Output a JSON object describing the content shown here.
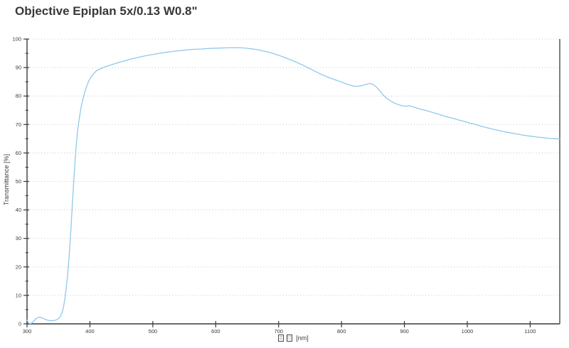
{
  "title": "Objective Epiplan 5x/0.13 W0.8\"",
  "chart_data": {
    "type": "line",
    "title": "Objective Epiplan 5x/0.13 W0.8\"",
    "ylabel": "Transmittance [%]",
    "xlabel_prefix_glyphs": "□□",
    "xlabel_unit": "[nm]",
    "xlim": [
      300,
      1147
    ],
    "ylim": [
      0,
      100
    ],
    "x_ticks": [
      300,
      400,
      500,
      600,
      700,
      800,
      900,
      1000,
      1100
    ],
    "y_ticks": [
      0,
      10,
      20,
      30,
      40,
      50,
      60,
      70,
      80,
      90,
      100
    ],
    "y_minor_step": 5,
    "grid": "horizontal-dotted",
    "legend": "none",
    "colors": {
      "line": "#8FC9EA",
      "axis": "#383838",
      "grid": "#c8c8c8",
      "border_right": "#555555",
      "text": "#3c3c3c"
    },
    "series": [
      {
        "name": "Transmittance",
        "x": [
          300,
          302,
          304,
          307,
          310,
          314,
          317,
          320,
          323,
          327,
          331,
          335,
          339,
          343,
          347,
          350,
          353,
          356,
          358,
          360,
          362,
          364,
          366,
          368,
          370,
          372,
          374,
          376,
          378,
          380,
          383,
          386,
          389,
          392,
          395,
          398,
          402,
          406,
          410,
          415,
          420,
          426,
          432,
          440,
          448,
          456,
          465,
          475,
          485,
          495,
          505,
          517,
          530,
          542,
          554,
          566,
          578,
          590,
          603,
          616,
          630,
          643,
          656,
          668,
          680,
          692,
          704,
          716,
          727,
          737,
          746,
          755,
          764,
          773,
          782,
          791,
          799,
          806,
          813,
          819,
          825,
          831,
          837,
          842,
          847,
          851,
          856,
          861,
          866,
          872,
          878,
          884,
          890,
          896,
          902,
          907,
          912,
          918,
          925,
          933,
          941,
          950,
          959,
          968,
          977,
          986,
          995,
          1004,
          1013,
          1022,
          1031,
          1040,
          1050,
          1060,
          1070,
          1080,
          1090,
          1100,
          1110,
          1120,
          1130,
          1140,
          1147
        ],
        "y": [
          1.3,
          0.5,
          0.1,
          0.2,
          0.8,
          1.8,
          2.2,
          2.3,
          2.2,
          1.8,
          1.4,
          1.2,
          1.1,
          1.2,
          1.4,
          1.9,
          2.6,
          4.2,
          6.0,
          8.5,
          12,
          16,
          21,
          27,
          34,
          42,
          49,
          56,
          62,
          67,
          72,
          76,
          79,
          81.5,
          83.5,
          85.2,
          86.8,
          87.9,
          88.8,
          89.4,
          89.9,
          90.4,
          90.8,
          91.4,
          91.9,
          92.4,
          93.0,
          93.5,
          94.0,
          94.4,
          94.8,
          95.2,
          95.6,
          95.9,
          96.2,
          96.4,
          96.5,
          96.7,
          96.8,
          96.9,
          97.0,
          96.9,
          96.6,
          96.2,
          95.6,
          94.9,
          94.0,
          93.0,
          92.0,
          91.0,
          90.0,
          89.0,
          88.0,
          87.1,
          86.3,
          85.6,
          85.0,
          84.4,
          83.9,
          83.5,
          83.4,
          83.6,
          84.0,
          84.3,
          84.4,
          84.0,
          83.0,
          81.8,
          80.4,
          79.2,
          78.3,
          77.5,
          77.0,
          76.6,
          76.4,
          76.6,
          76.3,
          75.9,
          75.4,
          75.0,
          74.5,
          73.9,
          73.3,
          72.7,
          72.2,
          71.6,
          71.1,
          70.5,
          70.0,
          69.4,
          68.9,
          68.4,
          67.9,
          67.4,
          67.0,
          66.6,
          66.2,
          65.9,
          65.6,
          65.4,
          65.1,
          65.0,
          64.9
        ]
      }
    ]
  }
}
